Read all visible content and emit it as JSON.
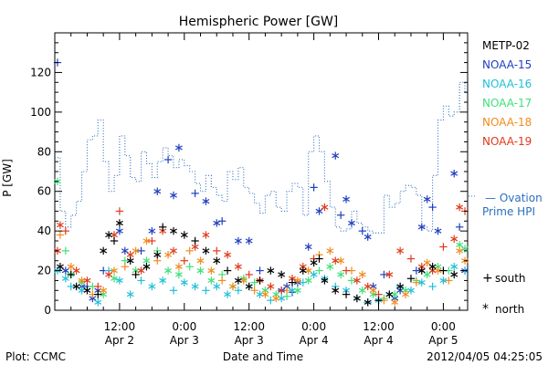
{
  "chart_data": {
    "type": "scatter",
    "title": "Hemispheric Power [GW]",
    "ylabel": "P [GW]",
    "xlabel": "Date and Time",
    "ylim": [
      0,
      140
    ],
    "y_ticks": [
      0,
      20,
      40,
      60,
      80,
      100,
      120
    ],
    "x_ticks": [
      {
        "t": 12,
        "line1": "12:00",
        "line2": "Apr 2"
      },
      {
        "t": 24,
        "line1": "0:00",
        "line2": "Apr 3"
      },
      {
        "t": 36,
        "line1": "12:00",
        "line2": "Apr 3"
      },
      {
        "t": 48,
        "line1": "0:00",
        "line2": "Apr 4"
      },
      {
        "t": 60,
        "line1": "12:00",
        "line2": "Apr 4"
      },
      {
        "t": 72,
        "line1": "0:00",
        "line2": "Apr 5"
      }
    ],
    "x_minor_ticks": [
      3,
      6,
      9,
      15,
      18,
      21,
      27,
      30,
      33,
      39,
      42,
      45,
      51,
      54,
      57,
      63,
      66,
      69,
      75,
      78
    ],
    "xlim": [
      0,
      76.5
    ],
    "legend": [
      "METP-02",
      "NOAA-15",
      "NOAA-16",
      "NOAA-17",
      "NOAA-18",
      "NOAA-19"
    ],
    "colors": {
      "METP-02": "#000000",
      "NOAA-15": "#1f3fbf",
      "NOAA-16": "#1fc0d8",
      "NOAA-17": "#3ee07a",
      "NOAA-18": "#f08c1c",
      "NOAA-19": "#e03a1a",
      "Ovation": "#2c6fc0"
    },
    "ovation": {
      "label_line1": "— Ovation",
      "label_line2": "Prime HPI",
      "x": [
        0,
        1,
        2,
        3,
        4,
        5,
        6,
        7,
        8,
        9,
        10,
        11,
        12,
        13,
        14,
        15,
        16,
        17,
        18,
        19,
        20,
        21,
        22,
        23,
        24,
        25,
        26,
        27,
        28,
        29,
        30,
        31,
        32,
        33,
        34,
        35,
        36,
        37,
        38,
        39,
        40,
        41,
        42,
        43,
        44,
        45,
        46,
        47,
        48,
        49,
        50,
        51,
        52,
        53,
        54,
        55,
        56,
        57,
        58,
        59,
        60,
        61,
        62,
        63,
        64,
        65,
        66,
        67,
        68,
        69,
        70,
        71,
        72,
        73,
        74,
        75,
        76
      ],
      "y": [
        77,
        50,
        42,
        48,
        55,
        70,
        86,
        88,
        96,
        75,
        60,
        68,
        88,
        78,
        67,
        65,
        80,
        74,
        67,
        75,
        82,
        78,
        72,
        76,
        73,
        70,
        64,
        60,
        68,
        62,
        58,
        55,
        70,
        66,
        72,
        62,
        59,
        54,
        49,
        58,
        60,
        52,
        50,
        60,
        64,
        62,
        48,
        80,
        88,
        80,
        65,
        52,
        42,
        40,
        41,
        50,
        44,
        42,
        40,
        39,
        39,
        58,
        52,
        54,
        60,
        63,
        62,
        58,
        42,
        40,
        68,
        96,
        103,
        98,
        100,
        115,
        110
      ]
    },
    "series": [
      {
        "name": "NOAA-15",
        "points": [
          [
            0.5,
            125
          ],
          [
            2,
            20
          ],
          [
            5,
            12
          ],
          [
            6,
            12
          ],
          [
            7,
            6
          ],
          [
            8,
            10
          ],
          [
            9,
            20
          ],
          [
            12,
            40
          ],
          [
            13,
            30
          ],
          [
            16,
            30
          ],
          [
            18,
            40
          ],
          [
            19,
            60
          ],
          [
            21,
            76
          ],
          [
            22,
            58
          ],
          [
            23,
            82
          ],
          [
            26,
            59
          ],
          [
            28,
            55
          ],
          [
            30,
            44
          ],
          [
            31,
            45
          ],
          [
            34,
            35
          ],
          [
            36,
            35
          ],
          [
            38,
            20
          ],
          [
            42,
            10
          ],
          [
            43,
            12
          ],
          [
            44,
            9
          ],
          [
            45,
            14
          ],
          [
            47,
            32
          ],
          [
            48,
            62
          ],
          [
            49,
            50
          ],
          [
            52,
            78
          ],
          [
            53,
            48
          ],
          [
            54,
            56
          ],
          [
            55,
            44
          ],
          [
            57,
            40
          ],
          [
            58,
            37
          ],
          [
            59,
            12
          ],
          [
            61,
            18
          ],
          [
            63,
            6
          ],
          [
            64,
            10
          ],
          [
            67,
            20
          ],
          [
            68,
            42
          ],
          [
            69,
            56
          ],
          [
            70,
            52
          ],
          [
            71,
            40
          ],
          [
            74,
            69
          ],
          [
            75,
            42
          ],
          [
            76,
            20
          ]
        ]
      },
      {
        "name": "NOAA-16",
        "points": [
          [
            0.5,
            20
          ],
          [
            2,
            16
          ],
          [
            3,
            12
          ],
          [
            5,
            10
          ],
          [
            8,
            4
          ],
          [
            10,
            20
          ],
          [
            12,
            15
          ],
          [
            14,
            8
          ],
          [
            16,
            15
          ],
          [
            18,
            12
          ],
          [
            20,
            15
          ],
          [
            22,
            10
          ],
          [
            24,
            14
          ],
          [
            26,
            12
          ],
          [
            28,
            10
          ],
          [
            30,
            12
          ],
          [
            32,
            8
          ],
          [
            34,
            10
          ],
          [
            36,
            12
          ],
          [
            38,
            8
          ],
          [
            40,
            5
          ],
          [
            42,
            6
          ],
          [
            44,
            10
          ],
          [
            46,
            14
          ],
          [
            48,
            18
          ],
          [
            50,
            16
          ],
          [
            52,
            12
          ],
          [
            54,
            10
          ],
          [
            56,
            6
          ],
          [
            58,
            4
          ],
          [
            60,
            5
          ],
          [
            62,
            8
          ],
          [
            64,
            12
          ],
          [
            66,
            10
          ],
          [
            68,
            14
          ],
          [
            70,
            12
          ],
          [
            72,
            15
          ],
          [
            74,
            22
          ],
          [
            76,
            20
          ]
        ]
      },
      {
        "name": "NOAA-17",
        "points": [
          [
            0.5,
            65
          ],
          [
            2,
            30
          ],
          [
            3,
            18
          ],
          [
            5,
            14
          ],
          [
            7,
            12
          ],
          [
            9,
            8
          ],
          [
            11,
            16
          ],
          [
            13,
            25
          ],
          [
            15,
            20
          ],
          [
            17,
            25
          ],
          [
            19,
            30
          ],
          [
            21,
            20
          ],
          [
            23,
            18
          ],
          [
            25,
            22
          ],
          [
            27,
            20
          ],
          [
            29,
            15
          ],
          [
            31,
            18
          ],
          [
            33,
            12
          ],
          [
            35,
            16
          ],
          [
            37,
            14
          ],
          [
            39,
            10
          ],
          [
            41,
            8
          ],
          [
            43,
            7
          ],
          [
            45,
            10
          ],
          [
            47,
            15
          ],
          [
            49,
            20
          ],
          [
            51,
            22
          ],
          [
            53,
            18
          ],
          [
            55,
            15
          ],
          [
            57,
            10
          ],
          [
            59,
            8
          ],
          [
            61,
            6
          ],
          [
            63,
            8
          ],
          [
            65,
            10
          ],
          [
            67,
            15
          ],
          [
            69,
            18
          ],
          [
            71,
            22
          ],
          [
            73,
            20
          ],
          [
            75,
            33
          ],
          [
            76,
            31
          ]
        ]
      },
      {
        "name": "NOAA-18",
        "points": [
          [
            1,
            38
          ],
          [
            3,
            22
          ],
          [
            5,
            15
          ],
          [
            7,
            8
          ],
          [
            9,
            10
          ],
          [
            11,
            20
          ],
          [
            13,
            22
          ],
          [
            15,
            30
          ],
          [
            17,
            35
          ],
          [
            19,
            25
          ],
          [
            21,
            28
          ],
          [
            23,
            22
          ],
          [
            25,
            30
          ],
          [
            27,
            25
          ],
          [
            29,
            20
          ],
          [
            31,
            15
          ],
          [
            33,
            12
          ],
          [
            35,
            15
          ],
          [
            37,
            10
          ],
          [
            39,
            8
          ],
          [
            41,
            6
          ],
          [
            43,
            10
          ],
          [
            45,
            15
          ],
          [
            47,
            20
          ],
          [
            49,
            28
          ],
          [
            51,
            30
          ],
          [
            53,
            25
          ],
          [
            55,
            20
          ],
          [
            57,
            18
          ],
          [
            59,
            10
          ],
          [
            61,
            5
          ],
          [
            63,
            4
          ],
          [
            65,
            8
          ],
          [
            67,
            14
          ],
          [
            69,
            24
          ],
          [
            71,
            20
          ],
          [
            73,
            15
          ],
          [
            75,
            30
          ],
          [
            76,
            25
          ]
        ]
      },
      {
        "name": "NOAA-19",
        "points": [
          [
            0.5,
            30
          ],
          [
            1,
            43
          ],
          [
            2,
            40
          ],
          [
            4,
            20
          ],
          [
            6,
            15
          ],
          [
            8,
            12
          ],
          [
            10,
            18
          ],
          [
            11,
            38
          ],
          [
            12,
            50
          ],
          [
            14,
            28
          ],
          [
            16,
            20
          ],
          [
            18,
            35
          ],
          [
            20,
            40
          ],
          [
            22,
            30
          ],
          [
            24,
            25
          ],
          [
            26,
            32
          ],
          [
            28,
            38
          ],
          [
            30,
            30
          ],
          [
            32,
            28
          ],
          [
            34,
            22
          ],
          [
            36,
            18
          ],
          [
            38,
            15
          ],
          [
            40,
            12
          ],
          [
            42,
            10
          ],
          [
            44,
            16
          ],
          [
            46,
            22
          ],
          [
            48,
            26
          ],
          [
            50,
            52
          ],
          [
            52,
            25
          ],
          [
            54,
            20
          ],
          [
            56,
            15
          ],
          [
            58,
            12
          ],
          [
            60,
            8
          ],
          [
            62,
            18
          ],
          [
            64,
            30
          ],
          [
            66,
            26
          ],
          [
            68,
            22
          ],
          [
            70,
            20
          ],
          [
            72,
            32
          ],
          [
            74,
            36
          ],
          [
            75,
            52
          ],
          [
            76,
            50
          ]
        ]
      },
      {
        "name": "METP-02",
        "points": [
          [
            1,
            22
          ],
          [
            3,
            18
          ],
          [
            4,
            12
          ],
          [
            6,
            10
          ],
          [
            8,
            8
          ],
          [
            9,
            30
          ],
          [
            10,
            38
          ],
          [
            11,
            35
          ],
          [
            12,
            44
          ],
          [
            14,
            25
          ],
          [
            15,
            18
          ],
          [
            17,
            22
          ],
          [
            19,
            28
          ],
          [
            20,
            42
          ],
          [
            22,
            40
          ],
          [
            24,
            38
          ],
          [
            26,
            35
          ],
          [
            28,
            30
          ],
          [
            30,
            25
          ],
          [
            32,
            20
          ],
          [
            34,
            15
          ],
          [
            36,
            12
          ],
          [
            38,
            15
          ],
          [
            40,
            20
          ],
          [
            42,
            18
          ],
          [
            44,
            14
          ],
          [
            46,
            20
          ],
          [
            48,
            24
          ],
          [
            49,
            26
          ],
          [
            50,
            15
          ],
          [
            52,
            10
          ],
          [
            54,
            8
          ],
          [
            56,
            6
          ],
          [
            58,
            4
          ],
          [
            60,
            5
          ],
          [
            62,
            8
          ],
          [
            64,
            12
          ],
          [
            66,
            16
          ],
          [
            68,
            20
          ],
          [
            70,
            22
          ],
          [
            72,
            20
          ],
          [
            74,
            18
          ]
        ]
      }
    ],
    "symbol_legend": [
      {
        "symbol": "+",
        "label": "south"
      },
      {
        "symbol": "*",
        "label": "north"
      }
    ]
  },
  "footer": {
    "plot_credit": "Plot: CCMC",
    "timestamp": "2012/04/05 04:25:05"
  }
}
